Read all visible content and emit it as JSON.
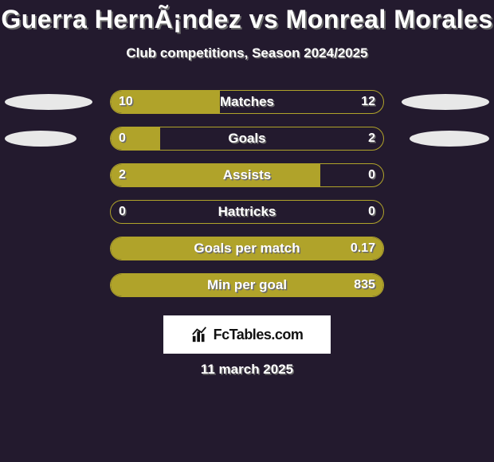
{
  "background": "#231a2e",
  "title": {
    "text": "Guerra HernÃ¡ndez vs Monreal Morales",
    "fontsize": 32,
    "color": "#ffffff",
    "shadow": "#6a6a6a"
  },
  "subtitle": {
    "text": "Club competitions, Season 2024/2025",
    "fontsize": 17
  },
  "bar_style": {
    "track_width": 344,
    "track_height": 30,
    "border_color": "#b0a32a",
    "fill_color": "#b0a32a",
    "border_radius": 15,
    "label_fontsize": 17,
    "value_fontsize": 16
  },
  "ellipse_color": "#e8e8e8",
  "rows": [
    {
      "label": "Matches",
      "left_value": "10",
      "right_value": "12",
      "left_fill_pct": 40,
      "right_fill_pct": 0,
      "left_ellipse_width": 110,
      "right_ellipse_width": 110
    },
    {
      "label": "Goals",
      "left_value": "0",
      "right_value": "2",
      "left_fill_pct": 18,
      "right_fill_pct": 0,
      "left_ellipse_width": 90,
      "right_ellipse_width": 100
    },
    {
      "label": "Assists",
      "left_value": "2",
      "right_value": "0",
      "left_fill_pct": 77,
      "right_fill_pct": 0,
      "left_ellipse_width": 0,
      "right_ellipse_width": 0
    },
    {
      "label": "Hattricks",
      "left_value": "0",
      "right_value": "0",
      "left_fill_pct": 0,
      "right_fill_pct": 0,
      "left_ellipse_width": 0,
      "right_ellipse_width": 0
    },
    {
      "label": "Goals per match",
      "left_value": "",
      "right_value": "0.17",
      "left_fill_pct": 100,
      "right_fill_pct": 0,
      "left_ellipse_width": 0,
      "right_ellipse_width": 0
    },
    {
      "label": "Min per goal",
      "left_value": "",
      "right_value": "835",
      "left_fill_pct": 100,
      "right_fill_pct": 0,
      "left_ellipse_width": 0,
      "right_ellipse_width": 0
    }
  ],
  "logo": {
    "text": "FcTables.com",
    "box_bg": "#ffffff",
    "text_color": "#111111",
    "fontsize": 18
  },
  "date": {
    "text": "11 march 2025",
    "fontsize": 17
  }
}
